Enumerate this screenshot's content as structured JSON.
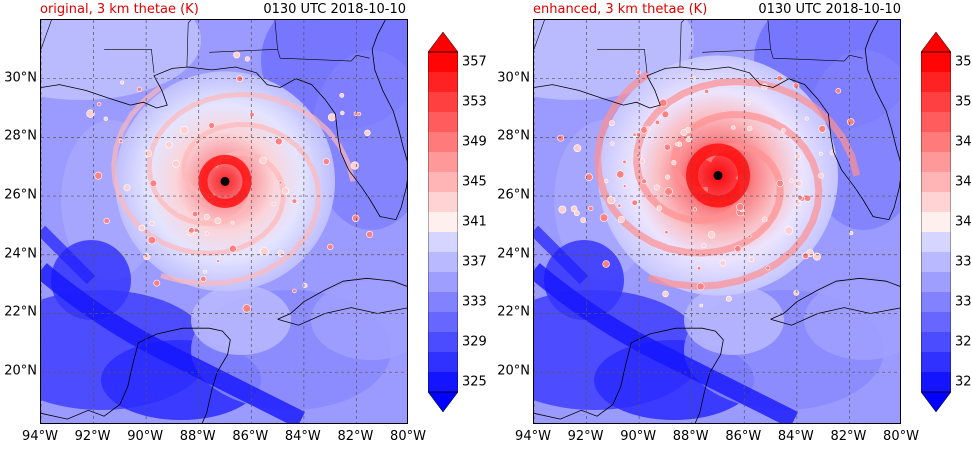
{
  "panels": [
    {
      "title_left": "original, 3 km thetae (K)",
      "title_right": "0130 UTC 2018-10-10",
      "eye_lon": -87.0,
      "eye_lat": 26.5
    },
    {
      "title_left": "enhanced, 3 km thetae (K)",
      "title_right": "0130 UTC 2018-10-10",
      "eye_lon": -87.0,
      "eye_lat": 26.7
    }
  ],
  "x_ticks": [
    "94°W",
    "92°W",
    "90°W",
    "88°W",
    "86°W",
    "84°W",
    "82°W",
    "80°W"
  ],
  "y_ticks": [
    "20°N",
    "22°N",
    "24°N",
    "26°N",
    "28°N",
    "30°N"
  ],
  "x_tick_values": [
    -94,
    -92,
    -90,
    -88,
    -86,
    -84,
    -82,
    -80
  ],
  "y_tick_values": [
    20,
    22,
    24,
    26,
    28,
    30
  ],
  "colorbar_labels": [
    "325",
    "329",
    "333",
    "337",
    "341",
    "345",
    "349",
    "353",
    "357"
  ],
  "colorbar_levels": [
    325,
    327,
    329,
    331,
    333,
    335,
    337,
    339,
    341,
    343,
    345,
    347,
    349,
    351,
    353,
    355,
    357
  ],
  "colorbar_min": 325,
  "colorbar_max": 359,
  "colors": {
    "cold": "#0000ff",
    "neutral": "#ffffff",
    "warm": "#ff0000",
    "coast": "#000000",
    "grid": "#555555"
  }
}
